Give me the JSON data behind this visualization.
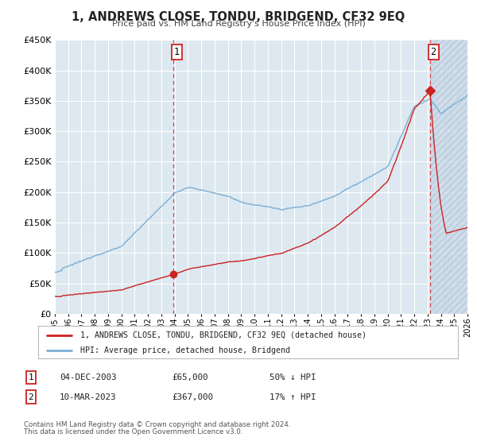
{
  "title": "1, ANDREWS CLOSE, TONDU, BRIDGEND, CF32 9EQ",
  "subtitle": "Price paid vs. HM Land Registry's House Price Index (HPI)",
  "background_color": "#ffffff",
  "plot_bg_color": "#dde8f0",
  "grid_color": "#ffffff",
  "hpi_color": "#7bafd4",
  "price_color": "#cc2222",
  "sale1_date": 2003.92,
  "sale1_price": 65000,
  "sale2_date": 2023.19,
  "sale2_price": 367000,
  "xmin": 1995,
  "xmax": 2026,
  "ymin": 0,
  "ymax": 450000,
  "legend_label1": "1, ANDREWS CLOSE, TONDU, BRIDGEND, CF32 9EQ (detached house)",
  "legend_label2": "HPI: Average price, detached house, Bridgend",
  "table_row1": [
    "1",
    "04-DEC-2003",
    "£65,000",
    "50% ↓ HPI"
  ],
  "table_row2": [
    "2",
    "10-MAR-2023",
    "£367,000",
    "17% ↑ HPI"
  ],
  "footnote1": "Contains HM Land Registry data © Crown copyright and database right 2024.",
  "footnote2": "This data is licensed under the Open Government Licence v3.0."
}
